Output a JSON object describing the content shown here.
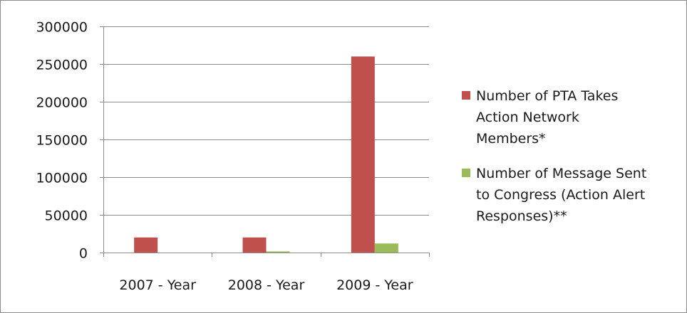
{
  "chart_data": {
    "type": "bar",
    "categories": [
      "2007 - Year",
      "2008 - Year",
      "2009 - Year"
    ],
    "series": [
      {
        "name": "Number of PTA Takes Action Network Members*",
        "values": [
          20000,
          20000,
          260000
        ],
        "color": "#c0504d"
      },
      {
        "name": "Number of Message Sent to Congress (Action Alert Responses)**",
        "values": [
          0,
          1500,
          12000
        ],
        "color": "#9bbb59"
      }
    ],
    "ylim": [
      0,
      300000
    ],
    "yticks": [
      "0",
      "50000",
      "100000",
      "150000",
      "200000",
      "250000",
      "300000"
    ],
    "grid": true,
    "legend_position": "right",
    "legend_lines": [
      [
        "Number of PTA Takes",
        "Action Network",
        "Members*"
      ],
      [
        "Number of Message Sent",
        "to Congress (Action Alert",
        "Responses)**"
      ]
    ]
  }
}
